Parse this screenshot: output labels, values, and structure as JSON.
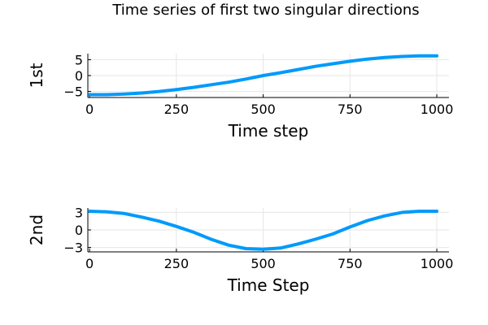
{
  "title": "Time series of first two singular directions",
  "colors": {
    "series": "#009AFA"
  },
  "chart_data": [
    {
      "type": "line",
      "xlabel": "Time step",
      "ylabel": "1st",
      "xlim": [
        -5,
        1035
      ],
      "ylim": [
        -6.9,
        6.9
      ],
      "xticks": [
        0,
        250,
        500,
        750,
        1000
      ],
      "yticks": [
        -5,
        0,
        5
      ],
      "grid": true,
      "series": [
        {
          "x": [
            0,
            50,
            100,
            150,
            200,
            250,
            300,
            350,
            400,
            450,
            500,
            550,
            600,
            650,
            700,
            750,
            800,
            850,
            900,
            950,
            1000
          ],
          "y": [
            -6.0,
            -6.0,
            -5.8,
            -5.5,
            -5.0,
            -4.4,
            -3.7,
            -2.9,
            -2.1,
            -1.1,
            0.0,
            0.9,
            1.9,
            2.9,
            3.7,
            4.5,
            5.2,
            5.7,
            6.0,
            6.2,
            6.2
          ]
        }
      ]
    },
    {
      "type": "line",
      "xlabel": "Time Step",
      "ylabel": "2nd",
      "xlim": [
        -5,
        1035
      ],
      "ylim": [
        -3.75,
        3.75
      ],
      "xticks": [
        0,
        250,
        500,
        750,
        1000
      ],
      "yticks": [
        -3,
        0,
        3
      ],
      "grid": true,
      "series": [
        {
          "x": [
            0,
            50,
            100,
            150,
            200,
            250,
            300,
            350,
            400,
            450,
            500,
            550,
            600,
            650,
            700,
            750,
            800,
            850,
            900,
            950,
            1000
          ],
          "y": [
            3.2,
            3.1,
            2.8,
            2.2,
            1.5,
            0.6,
            -0.4,
            -1.6,
            -2.6,
            -3.2,
            -3.3,
            -3.1,
            -2.4,
            -1.6,
            -0.7,
            0.5,
            1.6,
            2.4,
            3.0,
            3.2,
            3.2
          ]
        }
      ]
    }
  ]
}
